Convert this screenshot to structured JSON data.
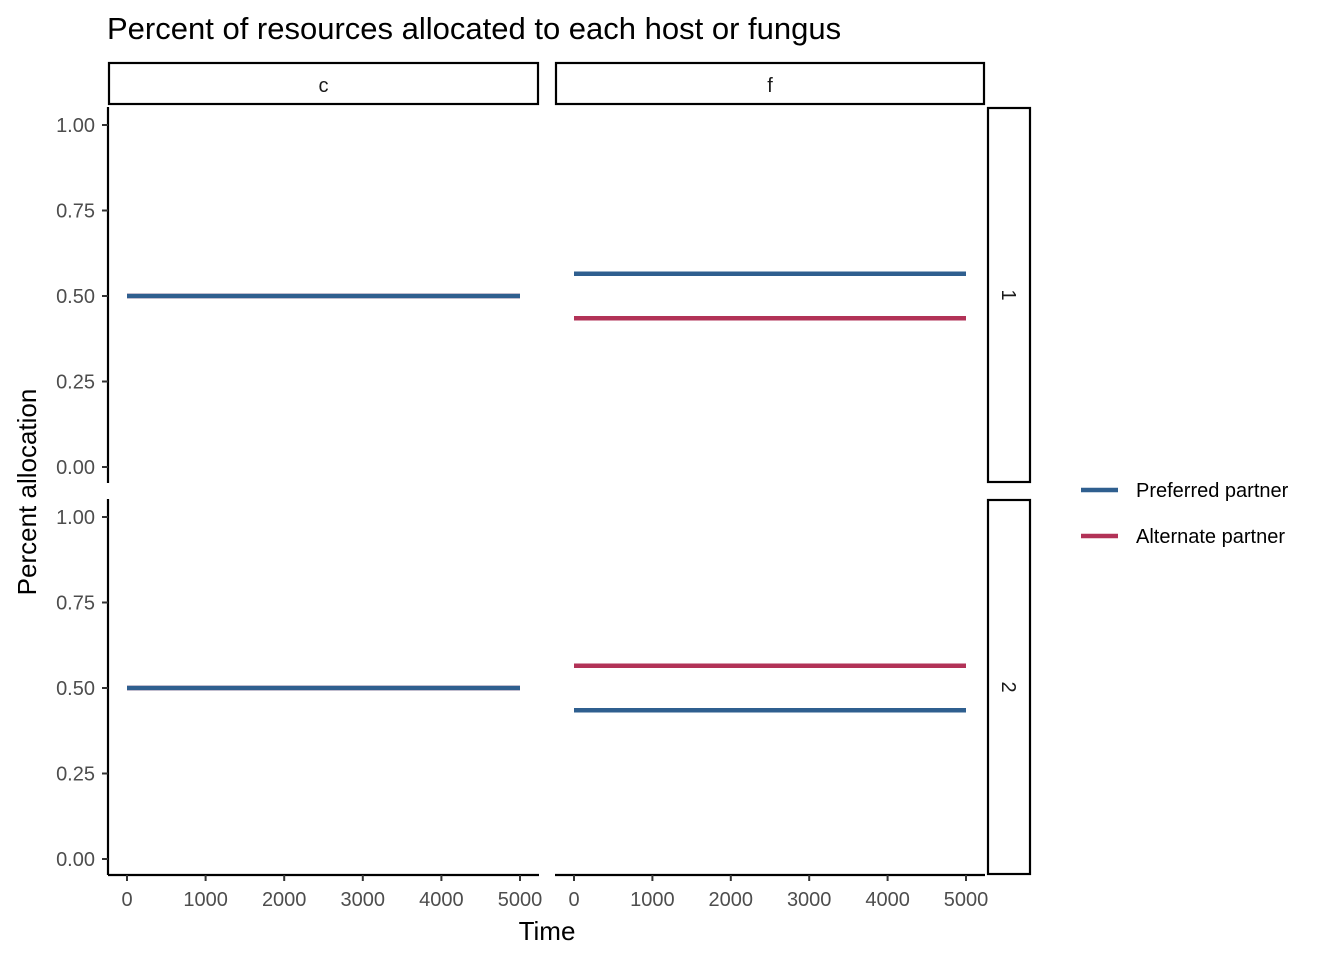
{
  "chart_data": {
    "type": "line",
    "title": "Percent of resources allocated to each host or fungus",
    "xlabel": "Time",
    "ylabel": "Percent allocation",
    "xlim": [
      0,
      5000
    ],
    "ylim": [
      0,
      1
    ],
    "x_ticks": [
      "0",
      "1000",
      "2000",
      "3000",
      "4000",
      "5000"
    ],
    "y_ticks": [
      "0.00",
      "0.25",
      "0.50",
      "0.75",
      "1.00"
    ],
    "facet_columns": [
      "c",
      "f"
    ],
    "facet_rows": [
      "1",
      "2"
    ],
    "legend_position": "right",
    "colors": {
      "preferred": "#2f5f8f",
      "alternate": "#b23257"
    },
    "legend": [
      {
        "key": "preferred",
        "label": "Preferred partner"
      },
      {
        "key": "alternate",
        "label": "Alternate partner"
      }
    ],
    "panels": [
      {
        "col": "c",
        "row": "1",
        "series": [
          {
            "key": "alternate",
            "x": [
              0,
              5000
            ],
            "y": [
              0.5,
              0.5
            ]
          },
          {
            "key": "preferred",
            "x": [
              0,
              5000
            ],
            "y": [
              0.5,
              0.5
            ]
          }
        ]
      },
      {
        "col": "f",
        "row": "1",
        "series": [
          {
            "key": "preferred",
            "x": [
              0,
              5000
            ],
            "y": [
              0.565,
              0.565
            ]
          },
          {
            "key": "alternate",
            "x": [
              0,
              5000
            ],
            "y": [
              0.435,
              0.435
            ]
          }
        ]
      },
      {
        "col": "c",
        "row": "2",
        "series": [
          {
            "key": "alternate",
            "x": [
              0,
              5000
            ],
            "y": [
              0.5,
              0.5
            ]
          },
          {
            "key": "preferred",
            "x": [
              0,
              5000
            ],
            "y": [
              0.5,
              0.5
            ]
          }
        ]
      },
      {
        "col": "f",
        "row": "2",
        "series": [
          {
            "key": "alternate",
            "x": [
              0,
              5000
            ],
            "y": [
              0.565,
              0.565
            ]
          },
          {
            "key": "preferred",
            "x": [
              0,
              5000
            ],
            "y": [
              0.435,
              0.435
            ]
          }
        ]
      }
    ]
  }
}
